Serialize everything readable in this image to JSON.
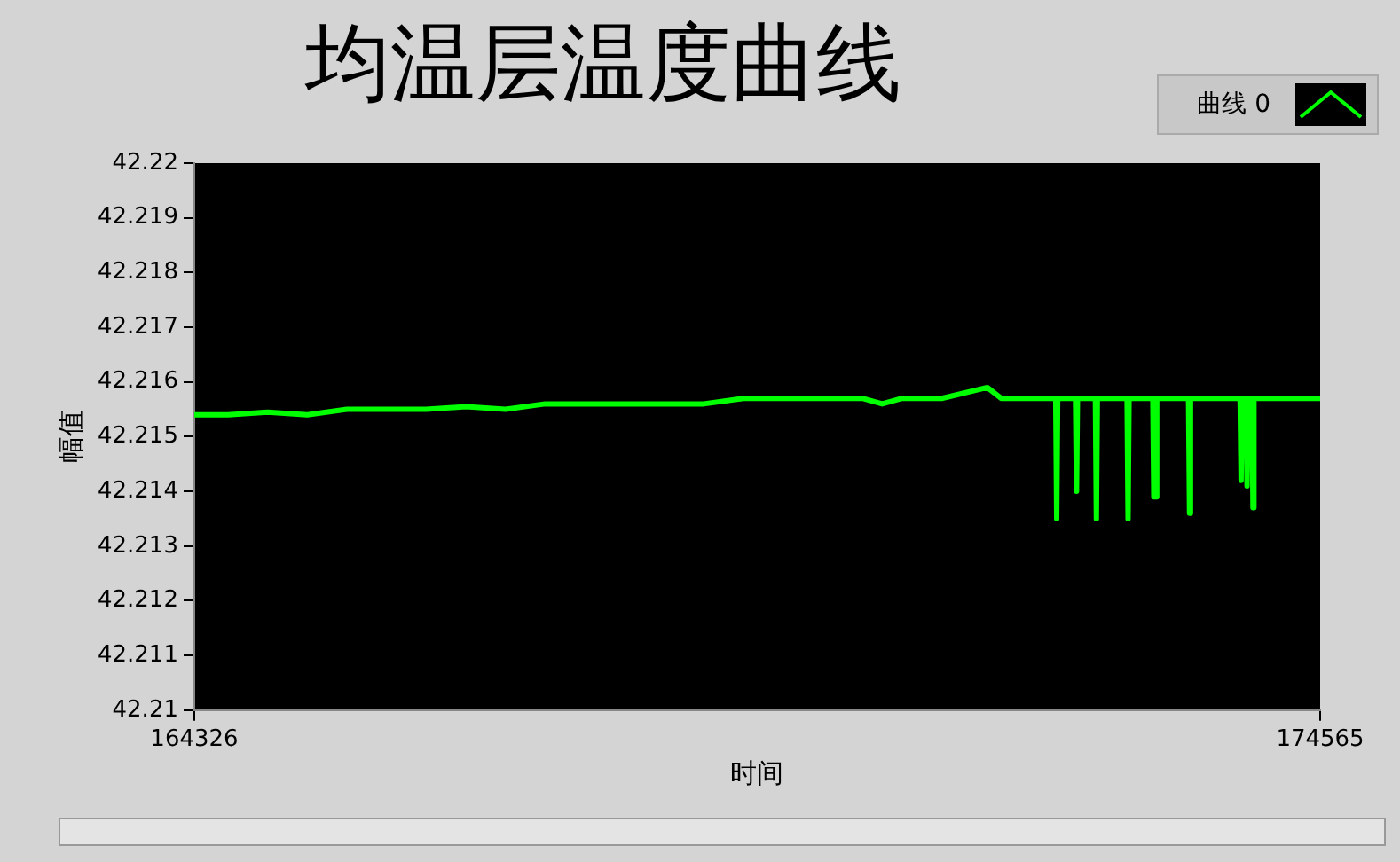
{
  "chart_data": {
    "type": "line",
    "title": "均温层温度曲线",
    "xlabel": "时间",
    "ylabel": "幅值",
    "series": [
      {
        "name": "曲线 0",
        "color": "#00ff00",
        "x": [
          164326,
          164632,
          164993,
          165354,
          165714,
          166075,
          166435,
          166796,
          167157,
          167517,
          167878,
          168239,
          168599,
          168960,
          169320,
          169681,
          170041,
          170402,
          170582,
          170763,
          171123,
          171538,
          171664,
          172025,
          172160,
          172169,
          172178,
          172340,
          172349,
          172358,
          172521,
          172530,
          172539,
          172809,
          172818,
          172827,
          173043,
          173052,
          173070,
          173079,
          173368,
          173377,
          173386,
          173837,
          173846,
          173855,
          173891,
          173900,
          173909,
          173945,
          173954,
          173963,
          174200,
          174565
        ],
        "values": [
          42.2154,
          42.2154,
          42.21545,
          42.2154,
          42.2155,
          42.2155,
          42.2155,
          42.21555,
          42.2155,
          42.2156,
          42.2156,
          42.2156,
          42.2156,
          42.2156,
          42.2157,
          42.2157,
          42.2157,
          42.2157,
          42.2156,
          42.2157,
          42.2157,
          42.2159,
          42.2157,
          42.2157,
          42.2157,
          42.2135,
          42.2157,
          42.2157,
          42.214,
          42.2157,
          42.2157,
          42.2135,
          42.2157,
          42.2157,
          42.2135,
          42.2157,
          42.2157,
          42.2139,
          42.2139,
          42.2157,
          42.2157,
          42.2136,
          42.2157,
          42.2157,
          42.2142,
          42.2157,
          42.2157,
          42.2141,
          42.2157,
          42.2157,
          42.2137,
          42.2157,
          42.2157,
          42.2157
        ]
      }
    ],
    "xlim": [
      164326,
      174565
    ],
    "xticks": [
      164326,
      174565
    ],
    "ylim": [
      42.21,
      42.22
    ],
    "yticks": [
      42.21,
      42.211,
      42.212,
      42.213,
      42.214,
      42.215,
      42.216,
      42.217,
      42.218,
      42.219,
      42.22
    ],
    "grid": false,
    "legend": "top right"
  }
}
